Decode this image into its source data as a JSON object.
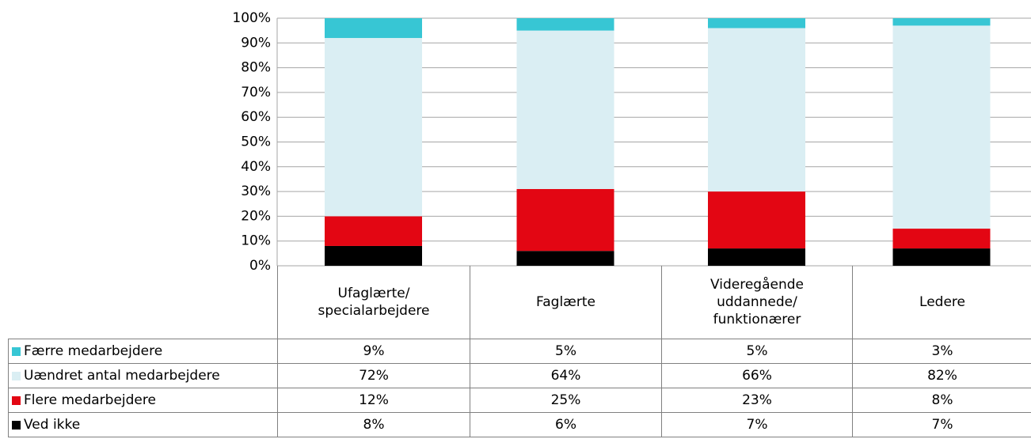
{
  "chart_data": {
    "type": "stacked_bar",
    "categories": [
      "Ufaglærte/\nspecialarbejdere",
      "Faglærte",
      "Videregående\nuddannede/\nfunktionærer",
      "Ledere"
    ],
    "series": [
      {
        "name": "Færre medarbejdere",
        "color": "#37c6d4",
        "values": [
          9,
          5,
          5,
          3
        ],
        "value_labels": [
          "9%",
          "5%",
          "5%",
          "3%"
        ]
      },
      {
        "name": "Uændret antal medarbejdere",
        "color": "#daeef3",
        "values": [
          72,
          64,
          66,
          82
        ],
        "value_labels": [
          "72%",
          "64%",
          "66%",
          "82%"
        ]
      },
      {
        "name": "Flere medarbejdere",
        "color": "#e30613",
        "values": [
          12,
          25,
          23,
          8
        ],
        "value_labels": [
          "12%",
          "25%",
          "23%",
          "8%"
        ]
      },
      {
        "name": "Ved ikke",
        "color": "#000000",
        "values": [
          8,
          6,
          7,
          7
        ],
        "value_labels": [
          "8%",
          "6%",
          "7%",
          "7%"
        ]
      }
    ],
    "ylim": [
      0,
      100
    ],
    "yticks": [
      {
        "value": 0,
        "label": "0%"
      },
      {
        "value": 10,
        "label": "10%"
      },
      {
        "value": 20,
        "label": "20%"
      },
      {
        "value": 30,
        "label": "30%"
      },
      {
        "value": 40,
        "label": "40%"
      },
      {
        "value": 50,
        "label": "50%"
      },
      {
        "value": 60,
        "label": "60%"
      },
      {
        "value": 70,
        "label": "70%"
      },
      {
        "value": 80,
        "label": "80%"
      },
      {
        "value": 90,
        "label": "90%"
      },
      {
        "value": 100,
        "label": "100%"
      }
    ],
    "grid": true
  }
}
